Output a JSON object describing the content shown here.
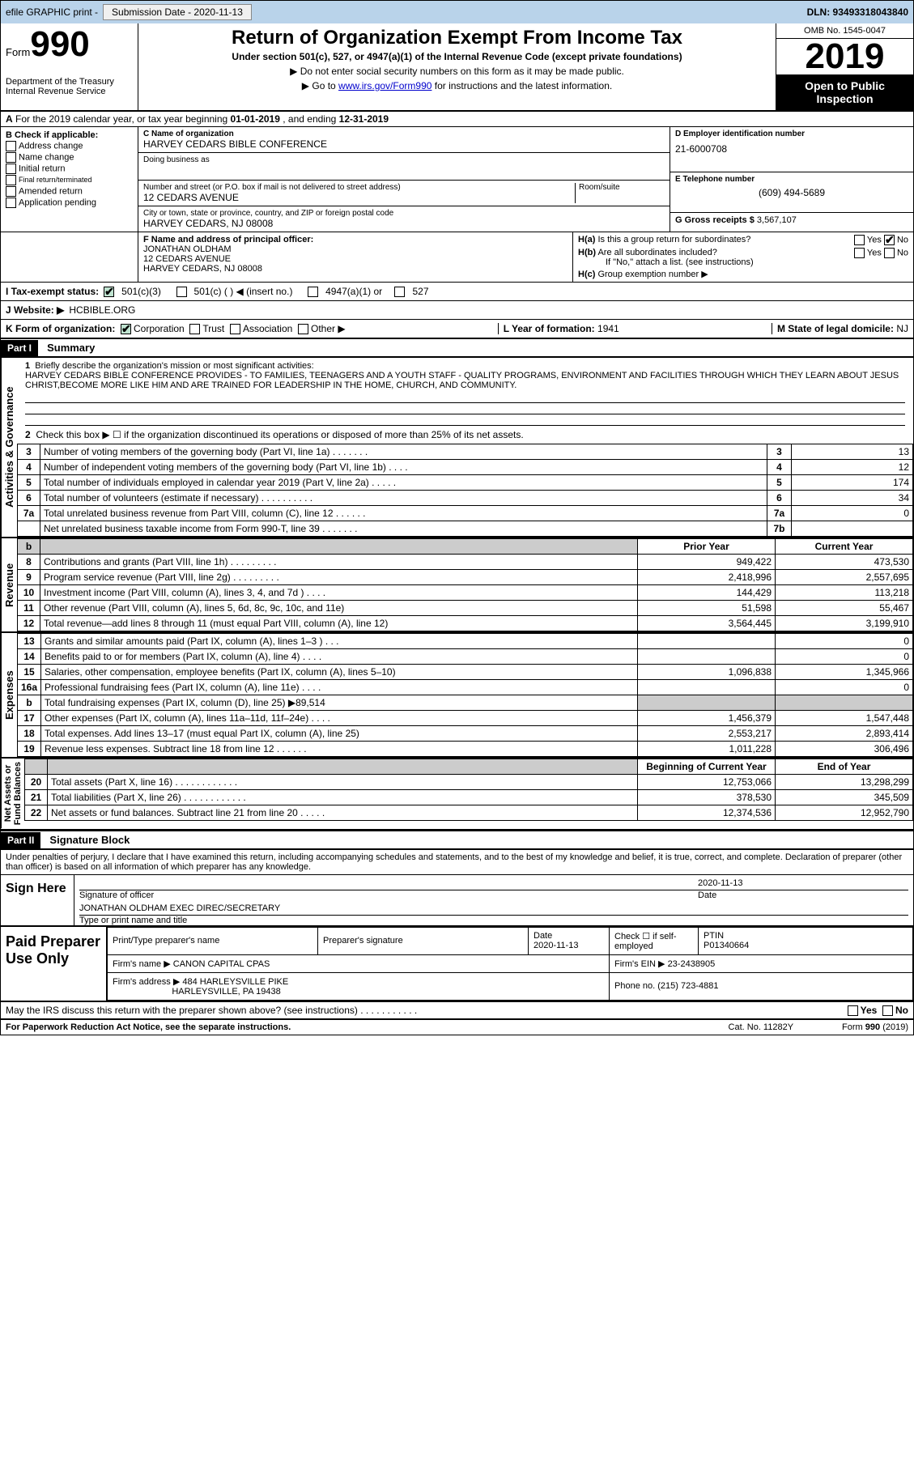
{
  "toolbar": {
    "efile": "efile GRAPHIC print -",
    "submission": "Submission Date - 2020-11-13",
    "dln": "DLN: 93493318043840"
  },
  "header": {
    "form_word": "Form",
    "form_no": "990",
    "dept": "Department of the Treasury\nInternal Revenue Service",
    "title": "Return of Organization Exempt From Income Tax",
    "sub": "Under section 501(c), 527, or 4947(a)(1) of the Internal Revenue Code (except private foundations)",
    "note1": "▶ Do not enter social security numbers on this form as it may be made public.",
    "note2_pre": "▶ Go to ",
    "note2_link": "www.irs.gov/Form990",
    "note2_post": " for instructions and the latest information.",
    "omb": "OMB No. 1545-0047",
    "year": "2019",
    "open": "Open to Public Inspection"
  },
  "A": {
    "text_pre": "For the 2019 calendar year, or tax year beginning ",
    "begin": "01-01-2019",
    "mid": " , and ending ",
    "end": "12-31-2019"
  },
  "B": {
    "label": "B Check if applicable:",
    "opts": [
      "Address change",
      "Name change",
      "Initial return",
      "Final return/terminated",
      "Amended return",
      "Application pending"
    ]
  },
  "C": {
    "name_lbl": "C Name of organization",
    "name": "HARVEY CEDARS BIBLE CONFERENCE",
    "dba_lbl": "Doing business as",
    "street_lbl": "Number and street (or P.O. box if mail is not delivered to street address)",
    "street": "12 CEDARS AVENUE",
    "room_lbl": "Room/suite",
    "city_lbl": "City or town, state or province, country, and ZIP or foreign postal code",
    "city": "HARVEY CEDARS, NJ  08008"
  },
  "D": {
    "lbl": "D Employer identification number",
    "val": "21-6000708"
  },
  "E": {
    "lbl": "E Telephone number",
    "val": "(609) 494-5689"
  },
  "G": {
    "lbl": "G Gross receipts $",
    "val": "3,567,107"
  },
  "F": {
    "lbl": "F  Name and address of principal officer:",
    "name": "JONATHAN OLDHAM",
    "addr1": "12 CEDARS AVENUE",
    "addr2": "HARVEY CEDARS, NJ  08008"
  },
  "H": {
    "a": "Is this a group return for subordinates?",
    "b": "Are all subordinates included?",
    "bnote": "If \"No,\" attach a list. (see instructions)",
    "c": "Group exemption number ▶",
    "yes": "Yes",
    "no": "No"
  },
  "I": {
    "lbl": "I  Tax-exempt status:",
    "o1": "501(c)(3)",
    "o2": "501(c) (  ) ◀ (insert no.)",
    "o3": "4947(a)(1) or",
    "o4": "527"
  },
  "J": {
    "lbl": "J  Website: ▶",
    "val": "HCBIBLE.ORG"
  },
  "K": {
    "lbl": "K Form of organization:",
    "o1": "Corporation",
    "o2": "Trust",
    "o3": "Association",
    "o4": "Other ▶"
  },
  "L": {
    "lbl": "L Year of formation:",
    "val": "1941"
  },
  "M": {
    "lbl": "M State of legal domicile:",
    "val": "NJ"
  },
  "part1": {
    "hdr": "Part I",
    "title": "Summary"
  },
  "mission": {
    "lineno": "1",
    "lbl": "Briefly describe the organization's mission or most significant activities:",
    "text": "HARVEY CEDARS BIBLE CONFERENCE PROVIDES - TO FAMILIES, TEENAGERS AND A YOUTH STAFF - QUALITY PROGRAMS, ENVIRONMENT AND FACILITIES THROUGH WHICH THEY LEARN ABOUT JESUS CHRIST,BECOME MORE LIKE HIM AND ARE TRAINED FOR LEADERSHIP IN THE HOME, CHURCH, AND COMMUNITY."
  },
  "gov": {
    "l2": "Check this box ▶ ☐  if the organization discontinued its operations or disposed of more than 25% of its net assets.",
    "rows": [
      {
        "n": "3",
        "t": "Number of voting members of the governing body (Part VI, line 1a)   .    .    .    .    .    .    .",
        "b": "3",
        "v": "13"
      },
      {
        "n": "4",
        "t": "Number of independent voting members of the governing body (Part VI, line 1b)   .    .    .    .",
        "b": "4",
        "v": "12"
      },
      {
        "n": "5",
        "t": "Total number of individuals employed in calendar year 2019 (Part V, line 2a)   .    .    .    .    .",
        "b": "5",
        "v": "174"
      },
      {
        "n": "6",
        "t": "Total number of volunteers (estimate if necessary)   .    .    .    .    .    .    .    .    .    .",
        "b": "6",
        "v": "34"
      },
      {
        "n": "7a",
        "t": "Total unrelated business revenue from Part VIII, column (C), line 12   .    .    .    .    .    .",
        "b": "7a",
        "v": "0"
      },
      {
        "n": "",
        "t": "Net unrelated business taxable income from Form 990-T, line 39   .    .    .    .    .    .    .",
        "b": "7b",
        "v": ""
      }
    ]
  },
  "rev": {
    "py_hdr": "Prior Year",
    "cy_hdr": "Current Year",
    "rows": [
      {
        "n": "8",
        "t": "Contributions and grants (Part VIII, line 1h)   .    .    .    .    .    .    .    .    .",
        "py": "949,422",
        "cy": "473,530"
      },
      {
        "n": "9",
        "t": "Program service revenue (Part VIII, line 2g)   .    .    .    .    .    .    .    .    .",
        "py": "2,418,996",
        "cy": "2,557,695"
      },
      {
        "n": "10",
        "t": "Investment income (Part VIII, column (A), lines 3, 4, and 7d )   .    .    .    .",
        "py": "144,429",
        "cy": "113,218"
      },
      {
        "n": "11",
        "t": "Other revenue (Part VIII, column (A), lines 5, 6d, 8c, 9c, 10c, and 11e)",
        "py": "51,598",
        "cy": "55,467"
      },
      {
        "n": "12",
        "t": "Total revenue—add lines 8 through 11 (must equal Part VIII, column (A), line 12)",
        "py": "3,564,445",
        "cy": "3,199,910"
      }
    ]
  },
  "exp": {
    "rows": [
      {
        "n": "13",
        "t": "Grants and similar amounts paid (Part IX, column (A), lines 1–3 )  .    .    .",
        "py": "",
        "cy": "0"
      },
      {
        "n": "14",
        "t": "Benefits paid to or for members (Part IX, column (A), line 4)   .    .    .    .",
        "py": "",
        "cy": "0"
      },
      {
        "n": "15",
        "t": "Salaries, other compensation, employee benefits (Part IX, column (A), lines 5–10)",
        "py": "1,096,838",
        "cy": "1,345,966"
      },
      {
        "n": "16a",
        "t": "Professional fundraising fees (Part IX, column (A), line 11e)   .    .    .    .",
        "py": "",
        "cy": "0"
      },
      {
        "n": "b",
        "t": "Total fundraising expenses (Part IX, column (D), line 25) ▶89,514",
        "py": "shade",
        "cy": "shade"
      },
      {
        "n": "17",
        "t": "Other expenses (Part IX, column (A), lines 11a–11d, 11f–24e)   .    .    .    .",
        "py": "1,456,379",
        "cy": "1,547,448"
      },
      {
        "n": "18",
        "t": "Total expenses. Add lines 13–17 (must equal Part IX, column (A), line 25)",
        "py": "2,553,217",
        "cy": "2,893,414"
      },
      {
        "n": "19",
        "t": "Revenue less expenses. Subtract line 18 from line 12   .    .    .    .    .    .",
        "py": "1,011,228",
        "cy": "306,496"
      }
    ]
  },
  "net": {
    "py_hdr": "Beginning of Current Year",
    "cy_hdr": "End of Year",
    "rows": [
      {
        "n": "20",
        "t": "Total assets (Part X, line 16)   .    .    .    .    .    .    .    .    .    .    .    .",
        "py": "12,753,066",
        "cy": "13,298,299"
      },
      {
        "n": "21",
        "t": "Total liabilities (Part X, line 26)   .    .    .    .    .    .    .    .    .    .    .    .",
        "py": "378,530",
        "cy": "345,509"
      },
      {
        "n": "22",
        "t": "Net assets or fund balances. Subtract line 21 from line 20   .    .    .    .    .",
        "py": "12,374,536",
        "cy": "12,952,790"
      }
    ]
  },
  "sidelabels": {
    "gov": "Activities & Governance",
    "rev": "Revenue",
    "exp": "Expenses",
    "net": "Net Assets or\nFund Balances"
  },
  "part2": {
    "hdr": "Part II",
    "title": "Signature Block",
    "decl": "Under penalties of perjury, I declare that I have examined this return, including accompanying schedules and statements, and to the best of my knowledge and belief, it is true, correct, and complete. Declaration of preparer (other than officer) is based on all information of which preparer has any knowledge."
  },
  "sign": {
    "here": "Sign Here",
    "date": "2020-11-13",
    "sig_cap": "Signature of officer",
    "date_cap": "Date",
    "name": "JONATHAN OLDHAM  EXEC DIREC/SECRETARY",
    "name_cap": "Type or print name and title"
  },
  "paid": {
    "lbl": "Paid Preparer Use Only",
    "h1": "Print/Type preparer's name",
    "h2": "Preparer's signature",
    "h3": "Date",
    "h3v": "2020-11-13",
    "h4": "Check ☐ if self-employed",
    "h5": "PTIN",
    "h5v": "P01340664",
    "firm_lbl": "Firm's name   ▶",
    "firm": "CANON CAPITAL CPAS",
    "ein_lbl": "Firm's EIN ▶",
    "ein": "23-2438905",
    "addr_lbl": "Firm's address ▶",
    "addr1": "484 HARLEYSVILLE PIKE",
    "addr2": "HARLEYSVILLE, PA  19438",
    "phone_lbl": "Phone no.",
    "phone": "(215) 723-4881"
  },
  "discuss": {
    "t": "May the IRS discuss this return with the preparer shown above? (see instructions)   .    .    .    .    .    .    .    .    .    .    .",
    "yes": "Yes",
    "no": "No"
  },
  "footer": {
    "left": "For Paperwork Reduction Act Notice, see the separate instructions.",
    "mid": "Cat. No. 11282Y",
    "right": "Form 990 (2019)"
  }
}
